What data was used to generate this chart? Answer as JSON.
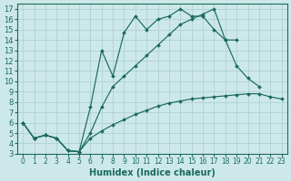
{
  "xlabel": "Humidex (Indice chaleur)",
  "bg_color": "#cde8e8",
  "line_color": "#1a6b5a",
  "grid_color": "#aacece",
  "xlim": [
    -0.5,
    23.5
  ],
  "ylim": [
    3,
    17.5
  ],
  "xticks": [
    0,
    1,
    2,
    3,
    4,
    5,
    6,
    7,
    8,
    9,
    10,
    11,
    12,
    13,
    14,
    15,
    16,
    17,
    18,
    19,
    20,
    21,
    22,
    23
  ],
  "yticks": [
    3,
    4,
    5,
    6,
    7,
    8,
    9,
    10,
    11,
    12,
    13,
    14,
    15,
    16,
    17
  ],
  "line1_x": [
    0,
    1,
    2,
    3,
    4,
    5,
    6,
    7,
    8,
    9,
    10,
    11,
    12,
    13,
    14,
    15,
    16,
    17,
    18,
    19
  ],
  "line1_y": [
    6.0,
    4.5,
    4.8,
    4.5,
    3.3,
    3.2,
    7.5,
    13.0,
    10.5,
    14.7,
    16.3,
    15.0,
    16.0,
    16.3,
    17.0,
    16.3,
    16.3,
    15.0,
    14.0,
    14.0
  ],
  "line2_x": [
    0,
    1,
    2,
    3,
    4,
    5,
    6,
    7,
    8,
    9,
    10,
    11,
    12,
    13,
    14,
    15,
    16,
    17,
    18,
    19,
    20,
    21
  ],
  "line2_y": [
    6.0,
    4.5,
    4.8,
    4.5,
    3.3,
    3.2,
    5.0,
    7.5,
    9.5,
    10.5,
    11.5,
    12.5,
    13.5,
    14.5,
    15.5,
    16.0,
    16.5,
    17.0,
    14.0,
    11.5,
    10.3,
    9.5
  ],
  "line3_x": [
    0,
    1,
    2,
    3,
    4,
    5,
    6,
    7,
    8,
    9,
    10,
    11,
    12,
    13,
    14,
    15,
    16,
    17,
    18,
    19,
    20,
    21,
    22,
    23
  ],
  "line3_y": [
    6.0,
    4.5,
    4.8,
    4.5,
    3.3,
    3.2,
    4.5,
    5.2,
    5.8,
    6.3,
    6.8,
    7.2,
    7.6,
    7.9,
    8.1,
    8.3,
    8.4,
    8.5,
    8.6,
    8.7,
    8.8,
    8.8,
    8.5,
    8.3
  ],
  "font_size": 7,
  "tick_font_size_x": 5.5,
  "tick_font_size_y": 6.0
}
